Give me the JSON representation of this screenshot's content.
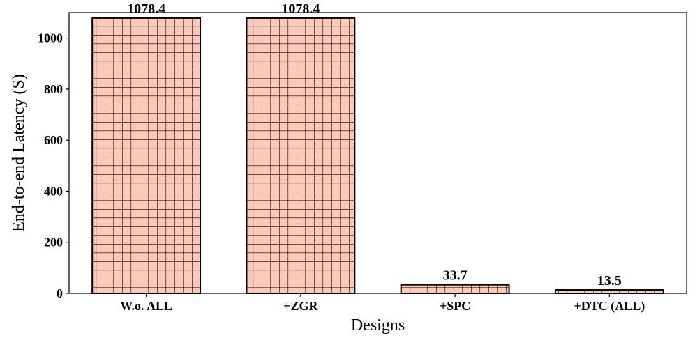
{
  "chart_data": {
    "type": "bar",
    "categories": [
      "W.o. ALL",
      "+ZGR",
      "+SPC",
      "+DTC (ALL)"
    ],
    "values": [
      1078.4,
      1078.4,
      33.7,
      13.5
    ],
    "value_labels": [
      "1078.4",
      "1078.4",
      "33.7",
      "13.5"
    ],
    "title": "",
    "xlabel": "Designs",
    "ylabel": "End-to-end Latency (S)",
    "ylim": [
      0,
      1100
    ],
    "yticks": [
      0,
      200,
      400,
      600,
      800,
      1000
    ],
    "grid": false,
    "legend": "none",
    "bar_fill": "#ffc8b8",
    "bar_edge": "#000000",
    "hatch": "grid"
  }
}
